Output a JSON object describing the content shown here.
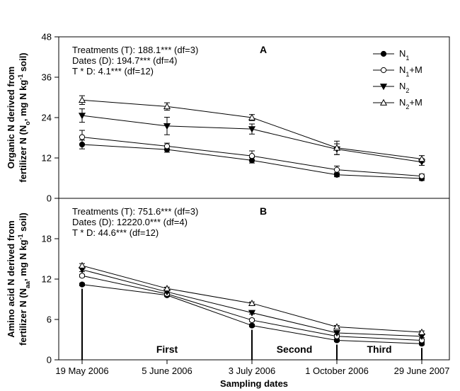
{
  "chart_data": {
    "type": "line",
    "xlabel": "Sampling dates",
    "categories": [
      "19 May 2006",
      "5 June 2006",
      "3 July 2006",
      "1 October 2006",
      "29 June 2007"
    ],
    "x_positions": [
      0,
      17,
      45,
      135,
      406
    ],
    "legend": {
      "placement": "top-right",
      "entries": [
        {
          "key": "n1",
          "base": "N",
          "sub": "1",
          "suffix": ""
        },
        {
          "key": "n1m",
          "base": "N",
          "sub": "1",
          "suffix": "+M"
        },
        {
          "key": "n2",
          "base": "N",
          "sub": "2",
          "suffix": ""
        },
        {
          "key": "n2m",
          "base": "N",
          "sub": "2",
          "suffix": "+M"
        }
      ]
    },
    "panels": [
      {
        "label": "A",
        "ylabel_line1": "Organic N derived from",
        "ylabel_line2_parts": [
          "fertilizer N (N",
          "o",
          ", mg N kg",
          "-1",
          " soil)"
        ],
        "ylim": [
          0,
          48
        ],
        "yticks": [
          "0",
          "12",
          "24",
          "36",
          "48"
        ],
        "stats": [
          "Treatments (T): 188.1*** (df=3)",
          "Dates (D): 194.7***  (df=4)",
          "T * D: 4.1*** (df=12)"
        ],
        "series": [
          {
            "key": "n1",
            "marker": "circle-filled",
            "values": [
              16.0,
              14.5,
              11.3,
              7.0,
              5.9
            ],
            "errors": [
              1.3,
              0.8,
              0.8,
              0.6,
              0.6
            ]
          },
          {
            "key": "n1m",
            "marker": "circle-open",
            "values": [
              18.2,
              15.5,
              12.6,
              8.5,
              6.6
            ],
            "errors": [
              2.0,
              0.9,
              1.5,
              1.1,
              0.6
            ]
          },
          {
            "key": "n2",
            "marker": "triangle-down-filled",
            "values": [
              24.6,
              21.5,
              20.6,
              14.6,
              10.8
            ],
            "errors": [
              2.0,
              2.6,
              1.5,
              1.6,
              1.0
            ]
          },
          {
            "key": "n2m",
            "marker": "triangle-up-open",
            "values": [
              29.2,
              27.3,
              24.0,
              15.0,
              11.7
            ],
            "errors": [
              1.3,
              1.1,
              0.9,
              2.0,
              1.0
            ]
          }
        ]
      },
      {
        "label": "B",
        "ylabel_line1": "Amino acid N derived from",
        "ylabel_line2_parts": [
          "fertilizer N (N",
          "aa",
          ", mg N kg",
          "-1",
          " soil)"
        ],
        "ylim": [
          0,
          24
        ],
        "yticks": [
          "0",
          "6",
          "12",
          "18"
        ],
        "stats": [
          "Treatments (T): 751.6*** (df=3)",
          "Dates (D): 12220.0***  (df=4)",
          "T * D: 44.6*** (df=12)"
        ],
        "series": [
          {
            "key": "n1",
            "marker": "circle-filled",
            "values": [
              11.2,
              9.6,
              5.1,
              2.9,
              2.4
            ],
            "errors": [
              0.2,
              0.2,
              0.2,
              0.2,
              0.2
            ]
          },
          {
            "key": "n1m",
            "marker": "circle-open",
            "values": [
              12.5,
              9.8,
              5.9,
              3.5,
              2.9
            ],
            "errors": [
              0.2,
              0.2,
              0.2,
              0.2,
              0.2
            ]
          },
          {
            "key": "n2",
            "marker": "triangle-down-filled",
            "values": [
              13.4,
              10.1,
              7.0,
              4.0,
              3.5
            ],
            "errors": [
              0.3,
              0.2,
              0.2,
              0.2,
              0.2
            ]
          },
          {
            "key": "n2m",
            "marker": "triangle-up-open",
            "values": [
              14.0,
              10.6,
              8.4,
              4.9,
              4.1
            ],
            "errors": [
              0.3,
              0.2,
              0.2,
              0.2,
              0.2
            ]
          }
        ],
        "phases": [
          {
            "label": "First",
            "start": 0,
            "end": 45
          },
          {
            "label": "Second",
            "start": 45,
            "end": 135
          },
          {
            "label": "Third",
            "start": 135,
            "end": 406
          }
        ]
      }
    ]
  }
}
